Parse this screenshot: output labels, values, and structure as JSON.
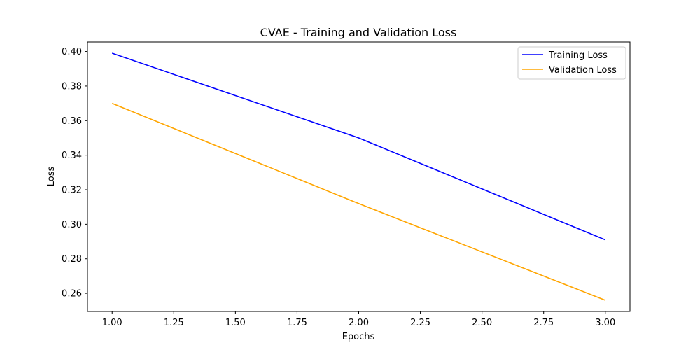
{
  "chart_data": {
    "type": "line",
    "title": "CVAE - Training and Validation Loss",
    "xlabel": "Epochs",
    "ylabel": "Loss",
    "xlim": [
      0.9,
      3.1
    ],
    "ylim": [
      0.2495,
      0.4055
    ],
    "x": [
      1,
      2,
      3
    ],
    "xticks": [
      1.0,
      1.25,
      1.5,
      1.75,
      2.0,
      2.25,
      2.5,
      2.75,
      3.0
    ],
    "xtick_labels": [
      "1.00",
      "1.25",
      "1.50",
      "1.75",
      "2.00",
      "2.25",
      "2.50",
      "2.75",
      "3.00"
    ],
    "yticks": [
      0.26,
      0.28,
      0.3,
      0.32,
      0.34,
      0.36,
      0.38,
      0.4
    ],
    "ytick_labels": [
      "0.26",
      "0.28",
      "0.30",
      "0.32",
      "0.34",
      "0.36",
      "0.38",
      "0.40"
    ],
    "grid": false,
    "legend_position": "top-right",
    "series": [
      {
        "name": "Training Loss",
        "color": "#0000ff",
        "values": [
          0.399,
          0.35,
          0.291
        ]
      },
      {
        "name": "Validation Loss",
        "color": "#ffa500",
        "values": [
          0.37,
          0.312,
          0.256
        ]
      }
    ]
  }
}
